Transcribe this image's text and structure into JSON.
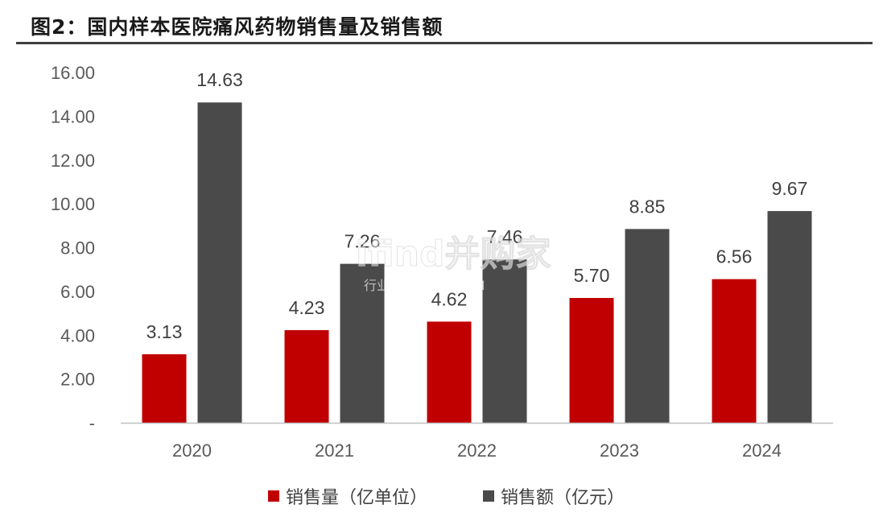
{
  "title": "图2：国内样本医院痛风药物销售量及销售额",
  "watermark": {
    "main": "ifind并购家",
    "sub": "行业报告 IPOIPO.CN"
  },
  "colors": {
    "series1": "#C00000",
    "series2": "#4A4A4A",
    "axis": "#BFBFBF"
  },
  "chart_data": {
    "type": "bar",
    "categories": [
      "2020",
      "2021",
      "2022",
      "2023",
      "2024"
    ],
    "series": [
      {
        "name": "销售量（亿单位）",
        "values": [
          3.13,
          4.23,
          4.62,
          5.7,
          6.56
        ]
      },
      {
        "name": "销售额（亿元）",
        "values": [
          14.63,
          7.26,
          7.46,
          8.85,
          9.67
        ]
      }
    ],
    "value_labels": [
      [
        "3.13",
        "4.23",
        "4.62",
        "5.70",
        "6.56"
      ],
      [
        "14.63",
        "7.26",
        "7.46",
        "8.85",
        "9.67"
      ]
    ],
    "ylim": [
      0,
      16
    ],
    "yticks": [
      "-",
      "2.00",
      "4.00",
      "6.00",
      "8.00",
      "10.00",
      "12.00",
      "14.00",
      "16.00"
    ],
    "grid": false,
    "legend_position": "bottom-center",
    "xlabel": "",
    "ylabel": ""
  }
}
